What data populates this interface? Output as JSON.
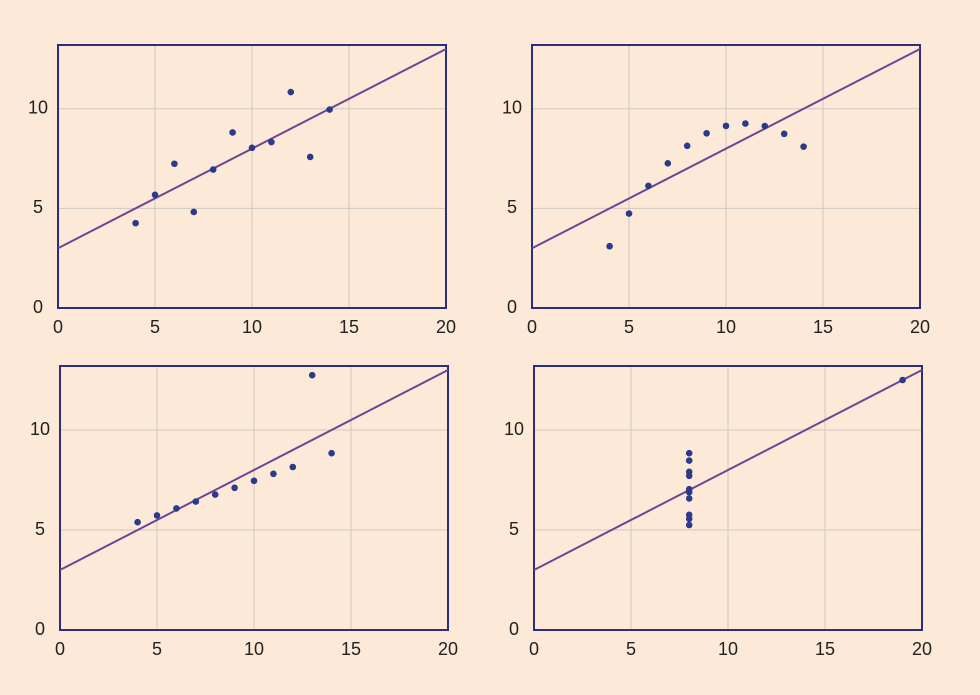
{
  "chart_data": [
    {
      "type": "scatter",
      "x": [
        10,
        8,
        13,
        9,
        11,
        14,
        6,
        4,
        12,
        7,
        5
      ],
      "y": [
        8.04,
        6.95,
        7.58,
        8.81,
        8.33,
        9.96,
        7.24,
        4.26,
        10.84,
        4.82,
        5.68
      ],
      "color": "#2b3a8a",
      "fit": {
        "intercept": 3,
        "slope": 0.5,
        "color": "#6e4494"
      },
      "xlim": [
        0,
        20
      ],
      "ylim": [
        0,
        13.2
      ],
      "xticks": [
        0,
        5,
        10,
        15,
        20
      ],
      "yticks": [
        0,
        5,
        10
      ],
      "grid": true
    },
    {
      "type": "scatter",
      "x": [
        10,
        8,
        13,
        9,
        11,
        14,
        6,
        4,
        12,
        7,
        5
      ],
      "y": [
        9.14,
        8.14,
        8.74,
        8.77,
        9.26,
        8.1,
        6.13,
        3.1,
        9.13,
        7.26,
        4.74
      ],
      "color": "#2b3a8a",
      "fit": {
        "intercept": 3,
        "slope": 0.5,
        "color": "#6e4494"
      },
      "xlim": [
        0,
        20
      ],
      "ylim": [
        0,
        13.2
      ],
      "xticks": [
        0,
        5,
        10,
        15,
        20
      ],
      "yticks": [
        0,
        5,
        10
      ],
      "grid": true
    },
    {
      "type": "scatter",
      "x": [
        10,
        8,
        13,
        9,
        11,
        14,
        6,
        4,
        12,
        7,
        5
      ],
      "y": [
        7.46,
        6.77,
        12.74,
        7.11,
        7.81,
        8.84,
        6.08,
        5.39,
        8.15,
        6.42,
        5.73
      ],
      "color": "#2b3a8a",
      "fit": {
        "intercept": 3,
        "slope": 0.5,
        "color": "#6e4494"
      },
      "xlim": [
        0,
        20
      ],
      "ylim": [
        0,
        13.2
      ],
      "xticks": [
        0,
        5,
        10,
        15,
        20
      ],
      "yticks": [
        0,
        5,
        10
      ],
      "grid": true
    },
    {
      "type": "scatter",
      "x": [
        8,
        8,
        8,
        8,
        8,
        8,
        8,
        19,
        8,
        8,
        8
      ],
      "y": [
        6.58,
        5.76,
        7.71,
        8.84,
        8.47,
        7.04,
        5.25,
        12.5,
        5.56,
        7.91,
        6.89
      ],
      "color": "#2b3a8a",
      "fit": {
        "intercept": 3,
        "slope": 0.5,
        "color": "#6e4494"
      },
      "xlim": [
        0,
        20
      ],
      "ylim": [
        0,
        13.2
      ],
      "xticks": [
        0,
        5,
        10,
        15,
        20
      ],
      "yticks": [
        0,
        5,
        10
      ],
      "grid": true
    }
  ]
}
